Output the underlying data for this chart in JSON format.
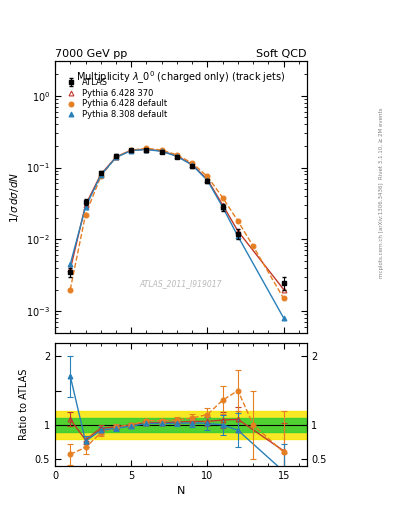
{
  "title_main": "Multiplicity $\\lambda\\_0^0$ (charged only) (track jets)",
  "header_left": "7000 GeV pp",
  "header_right": "Soft QCD",
  "watermark": "ATLAS_2011_I919017",
  "right_label_top": "Rivet 3.1.10, ≥ 2M events",
  "right_label_bot": "mcplots.cern.ch [arXiv:1306.3436]",
  "ylabel_main": "$1/\\sigma\\, d\\sigma/dN$",
  "ylabel_ratio": "Ratio to ATLAS",
  "xlabel": "N",
  "xlim": [
    0.5,
    16.5
  ],
  "ylim_main": [
    0.0005,
    3.0
  ],
  "ylim_ratio": [
    0.4,
    2.2
  ],
  "atlas_x": [
    1,
    2,
    3,
    4,
    5,
    6,
    7,
    8,
    9,
    10,
    11,
    12,
    15
  ],
  "atlas_y": [
    0.0035,
    0.033,
    0.085,
    0.145,
    0.175,
    0.175,
    0.165,
    0.14,
    0.105,
    0.065,
    0.028,
    0.012,
    0.0025
  ],
  "atlas_yerr": [
    0.0005,
    0.003,
    0.005,
    0.007,
    0.008,
    0.008,
    0.007,
    0.006,
    0.005,
    0.004,
    0.003,
    0.002,
    0.0005
  ],
  "p6370_x": [
    1,
    2,
    3,
    4,
    5,
    6,
    7,
    8,
    9,
    10,
    11,
    12,
    15
  ],
  "p6370_y": [
    0.0038,
    0.03,
    0.08,
    0.14,
    0.175,
    0.18,
    0.17,
    0.145,
    0.11,
    0.068,
    0.03,
    0.013,
    0.002
  ],
  "p6370_color": "#c0392b",
  "p6def_x": [
    1,
    2,
    3,
    4,
    5,
    6,
    7,
    8,
    9,
    10,
    11,
    12,
    13,
    15
  ],
  "p6def_y": [
    0.002,
    0.022,
    0.075,
    0.14,
    0.175,
    0.185,
    0.175,
    0.15,
    0.115,
    0.075,
    0.038,
    0.018,
    0.008,
    0.0015
  ],
  "p6def_color": "#e67e22",
  "p8def_x": [
    1,
    2,
    3,
    4,
    5,
    6,
    7,
    8,
    9,
    10,
    11,
    12,
    15
  ],
  "p8def_y": [
    0.0045,
    0.028,
    0.078,
    0.138,
    0.172,
    0.178,
    0.168,
    0.143,
    0.108,
    0.066,
    0.028,
    0.011,
    0.0008
  ],
  "p8def_color": "#2980b9",
  "ratio_p6370_x": [
    1,
    2,
    3,
    4,
    5,
    6,
    7,
    8,
    9,
    10,
    11,
    12,
    15
  ],
  "ratio_p6370_y": [
    1.08,
    0.78,
    0.95,
    0.97,
    1.0,
    1.03,
    1.03,
    1.04,
    1.05,
    1.05,
    1.07,
    1.08,
    0.62
  ],
  "ratio_p6370_yerr": [
    0.1,
    0.06,
    0.04,
    0.03,
    0.03,
    0.03,
    0.03,
    0.04,
    0.05,
    0.07,
    0.12,
    0.18,
    0.4
  ],
  "ratio_p6def_x": [
    1,
    2,
    3,
    4,
    5,
    6,
    7,
    8,
    9,
    10,
    11,
    12,
    13,
    15
  ],
  "ratio_p6def_y": [
    0.57,
    0.67,
    0.88,
    0.97,
    1.0,
    1.06,
    1.06,
    1.07,
    1.1,
    1.15,
    1.36,
    1.5,
    1.0,
    0.6
  ],
  "ratio_p6def_yerr": [
    0.15,
    0.1,
    0.05,
    0.04,
    0.03,
    0.03,
    0.03,
    0.04,
    0.06,
    0.1,
    0.2,
    0.3,
    0.5,
    0.6
  ],
  "ratio_p8def_x": [
    1,
    2,
    3,
    4,
    5,
    6,
    7,
    8,
    9,
    10,
    11,
    12,
    15
  ],
  "ratio_p8def_y": [
    1.71,
    0.76,
    0.92,
    0.95,
    0.98,
    1.02,
    1.02,
    1.02,
    1.03,
    1.02,
    1.0,
    0.92,
    0.32
  ],
  "ratio_p8def_yerr": [
    0.3,
    0.08,
    0.05,
    0.04,
    0.03,
    0.03,
    0.03,
    0.04,
    0.06,
    0.09,
    0.15,
    0.25,
    0.4
  ],
  "band_green_lo": 0.9,
  "band_green_hi": 1.1,
  "band_yellow_lo": 0.8,
  "band_yellow_hi": 1.2,
  "legend_labels": [
    "ATLAS",
    "Pythia 6.428 370",
    "Pythia 6.428 default",
    "Pythia 8.308 default"
  ]
}
